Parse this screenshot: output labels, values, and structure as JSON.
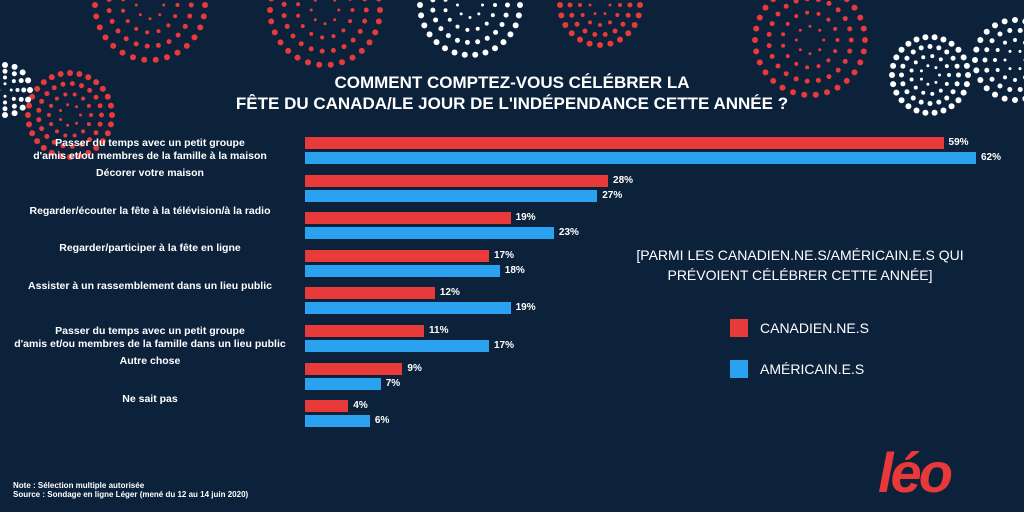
{
  "chart_data": {
    "type": "bar",
    "orientation": "horizontal",
    "title": "COMMENT COMPTEZ-VOUS CÉLÉBRER LA FÊTE DU CANADA/LE JOUR DE L'INDÉPENDANCE CETTE ANNÉE ?",
    "title_lines": [
      "COMMENT COMPTEZ-VOUS CÉLÉBRER LA",
      "FÊTE DU CANADA/LE JOUR DE L'INDÉPENDANCE CETTE ANNÉE ?"
    ],
    "subtitle_lines": [
      "[PARMI  LES CANADIEN.NE.S/AMÉRICAIN.E.S QUI",
      "PRÉVOIENT CÉLÉBRER CETTE ANNÉE]"
    ],
    "categories": [
      [
        "Passer du temps avec un petit groupe",
        "d'amis et/ou membres de la famille à la maison"
      ],
      [
        "Décorer votre maison"
      ],
      [
        "Regarder/écouter la fête à la télévision/à la radio"
      ],
      [
        "Regarder/participer à la fête en ligne"
      ],
      [
        "Assister à un rassemblement dans un lieu public"
      ],
      [
        "Passer du temps avec un petit groupe",
        "d'amis et/ou membres de la famille dans un lieu public"
      ],
      [
        "Autre chose"
      ],
      [
        "Ne sait pas"
      ]
    ],
    "series": [
      {
        "name": "CANADIEN.NE.S",
        "color": "#e8393b",
        "values": [
          59,
          28,
          19,
          17,
          12,
          11,
          9,
          4
        ]
      },
      {
        "name": "AMÉRICAIN.E.S",
        "color": "#2ba2f0",
        "values": [
          62,
          27,
          23,
          18,
          19,
          17,
          7,
          6
        ]
      }
    ],
    "value_suffix": "%",
    "legend_position": "right",
    "grid": false
  },
  "footer": {
    "note": "Note : Sélection multiple autorisée",
    "source": "Source : Sondage en ligne Léger (mené du 12 au 14 juin 2020)"
  },
  "logo": "léo",
  "colors": {
    "background": "#0c223b",
    "red": "#e8393b",
    "blue": "#2ba2f0"
  }
}
